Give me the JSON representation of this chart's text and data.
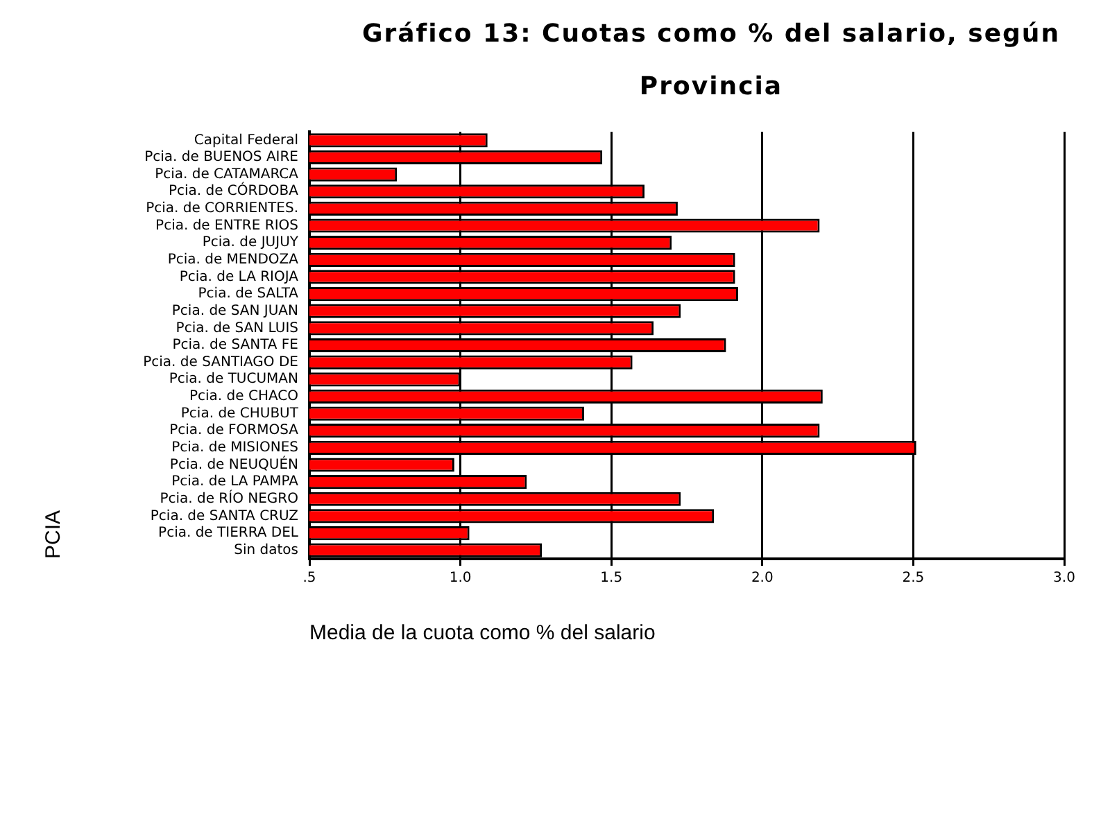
{
  "chart_data": {
    "type": "bar",
    "orientation": "horizontal",
    "title": "Gráfico 13: Cuotas como % del salario, según Provincia",
    "xlabel": "Media de la cuota como % del salario",
    "ylabel": "PCIA",
    "categories": [
      "Capital Federal",
      "Pcia. de BUENOS AIRE",
      "Pcia. de CATAMARCA",
      "Pcia. de CÓRDOBA",
      "Pcia. de CORRIENTES.",
      "Pcia. de ENTRE RIOS",
      "Pcia. de JUJUY",
      "Pcia. de MENDOZA",
      "Pcia. de LA RIOJA",
      "Pcia. de SALTA",
      "Pcia. de SAN JUAN",
      "Pcia. de SAN LUIS",
      "Pcia. de SANTA FE",
      "Pcia. de SANTIAGO DE",
      "Pcia. de TUCUMAN",
      "Pcia. de CHACO",
      "Pcia. de CHUBUT",
      "Pcia. de FORMOSA",
      "Pcia. de MISIONES",
      "Pcia. de NEUQUÉN",
      "Pcia. de LA PAMPA",
      "Pcia. de RÍO NEGRO",
      "Pcia. de SANTA CRUZ",
      "Pcia. de TIERRA DEL",
      "Sin datos"
    ],
    "values": [
      1.09,
      1.47,
      0.79,
      1.61,
      1.72,
      2.19,
      1.7,
      1.91,
      1.91,
      1.92,
      1.73,
      1.64,
      1.88,
      1.57,
      1.0,
      2.2,
      1.41,
      2.19,
      2.51,
      0.98,
      1.22,
      1.73,
      1.84,
      1.03,
      1.27
    ],
    "color": "#ff0000",
    "xlim": [
      0.5,
      3.0
    ],
    "xticks": [
      {
        "value": 0.5,
        "label": ".5"
      },
      {
        "value": 1.0,
        "label": "1.0"
      },
      {
        "value": 1.5,
        "label": "1.5"
      },
      {
        "value": 2.0,
        "label": "2.0"
      },
      {
        "value": 2.5,
        "label": "2.5"
      },
      {
        "value": 3.0,
        "label": "3.0"
      }
    ],
    "grid": "x"
  }
}
